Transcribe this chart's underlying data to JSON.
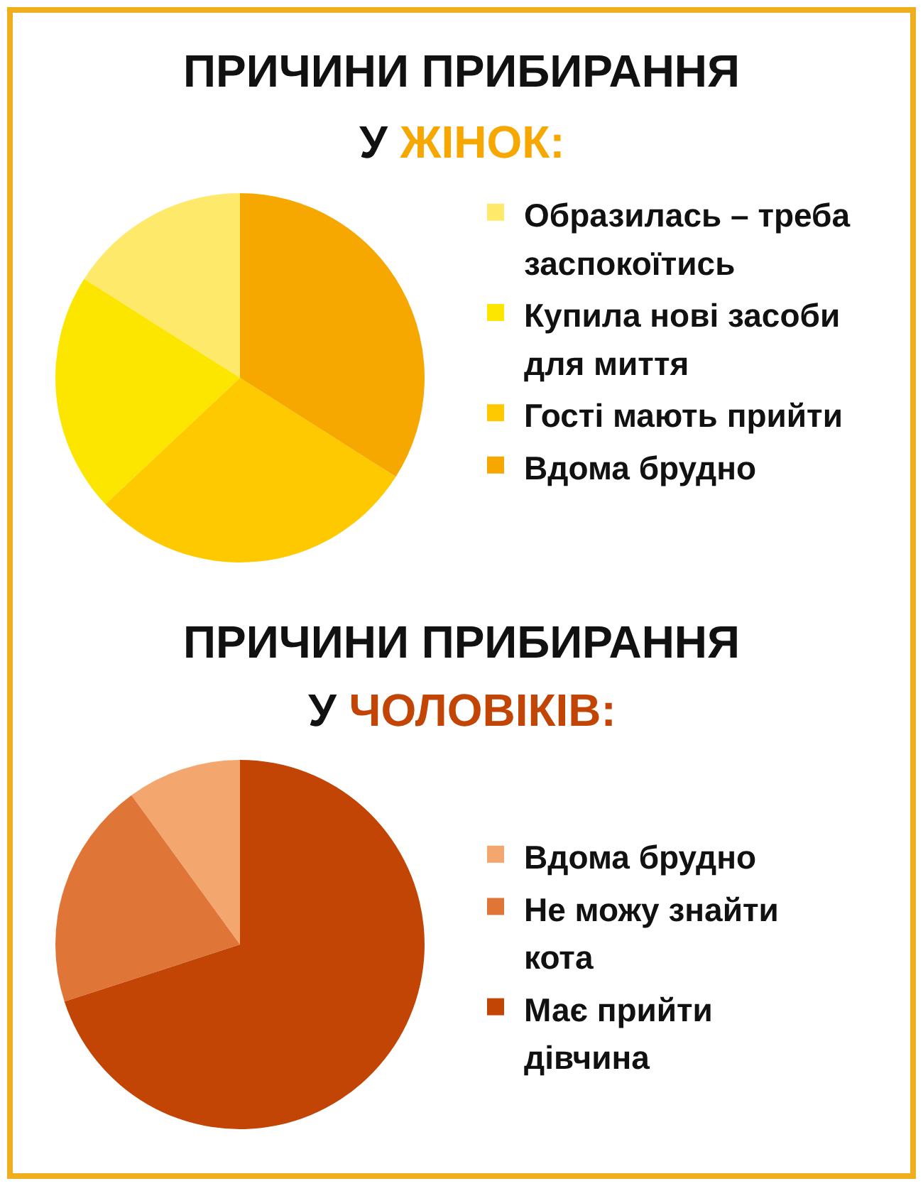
{
  "chart_data": [
    {
      "type": "pie",
      "title": "ПРИЧИНИ ПРИБИРАННЯ\nУ ЖІНОК:",
      "categories": [
        "Образилась – треба заспокоїтись",
        "Купила нові засоби для миття",
        "Гості мають прийти",
        "Вдома брудно"
      ],
      "values": [
        16,
        21,
        29,
        34
      ],
      "colors": [
        "#ffe96a",
        "#fce600",
        "#ffc900",
        "#f6a800"
      ],
      "legend": "right"
    },
    {
      "type": "pie",
      "title": "ПРИЧИНИ ПРИБИРАННЯ\nУ ЧОЛОВІКІВ:",
      "categories": [
        "Вдома брудно",
        "Не можу знайти кота",
        "Має прийти дівчина"
      ],
      "values": [
        10,
        20,
        70
      ],
      "colors": [
        "#f4a66f",
        "#df7637",
        "#c24506"
      ],
      "legend": "right"
    }
  ]
}
